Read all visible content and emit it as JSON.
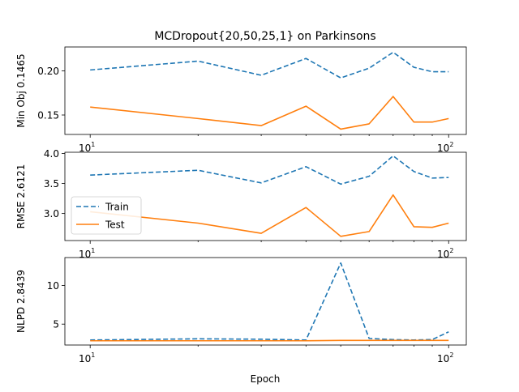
{
  "chart_data": {
    "type": "line",
    "title": "MCDropout{20,50,25,1} on Parkinsons",
    "xlabel": "Epoch",
    "xscale": "log",
    "xlim": [
      8.5,
      112
    ],
    "x": [
      10,
      20,
      30,
      40,
      50,
      60,
      70,
      80,
      90,
      100
    ],
    "legend": {
      "placement": "center-left",
      "panel": 1,
      "entries": [
        {
          "label": "Train",
          "color": "#1f77b4",
          "style": "dashed"
        },
        {
          "label": "Test",
          "color": "#ff7f0e",
          "style": "solid"
        }
      ]
    },
    "x_ticks": [
      {
        "base": "10",
        "exp": "1",
        "value": 10
      },
      {
        "base": "10",
        "exp": "2",
        "value": 100
      }
    ],
    "panels": [
      {
        "ylabel": "Min Obj 0.1465",
        "ylim": [
          0.128,
          0.227
        ],
        "yticks": [
          {
            "label": "0.15",
            "value": 0.15
          },
          {
            "label": "0.20",
            "value": 0.2
          }
        ],
        "series": [
          {
            "name": "Train",
            "values": [
              0.201,
              0.211,
              0.195,
              0.214,
              0.192,
              0.203,
              0.221,
              0.204,
              0.199,
              0.199
            ]
          },
          {
            "name": "Test",
            "values": [
              0.159,
              0.146,
              0.138,
              0.16,
              0.134,
              0.14,
              0.171,
              0.142,
              0.142,
              0.146
            ]
          }
        ]
      },
      {
        "ylabel": "RMSE 2.6121",
        "ylim": [
          2.55,
          4.02
        ],
        "yticks": [
          {
            "label": "3.0",
            "value": 3.0
          },
          {
            "label": "3.5",
            "value": 3.5
          },
          {
            "label": "4.0",
            "value": 4.0
          }
        ],
        "series": [
          {
            "name": "Train",
            "values": [
              3.64,
              3.72,
              3.51,
              3.78,
              3.49,
              3.62,
              3.96,
              3.7,
              3.59,
              3.6
            ]
          },
          {
            "name": "Test",
            "values": [
              3.03,
              2.84,
              2.67,
              3.1,
              2.62,
              2.7,
              3.31,
              2.78,
              2.77,
              2.84
            ]
          }
        ]
      },
      {
        "ylabel": "NLPD 2.8439",
        "ylim": [
          2.3,
          13.6
        ],
        "yticks": [
          {
            "label": "5",
            "value": 5
          },
          {
            "label": "10",
            "value": 10
          }
        ],
        "series": [
          {
            "name": "Train",
            "values": [
              2.95,
              3.1,
              3.05,
              2.95,
              12.9,
              3.15,
              3.0,
              2.95,
              3.0,
              4.0
            ]
          },
          {
            "name": "Test",
            "values": [
              2.85,
              2.85,
              2.85,
              2.85,
              2.9,
              2.9,
              2.9,
              2.9,
              2.9,
              2.9
            ]
          }
        ]
      }
    ]
  }
}
